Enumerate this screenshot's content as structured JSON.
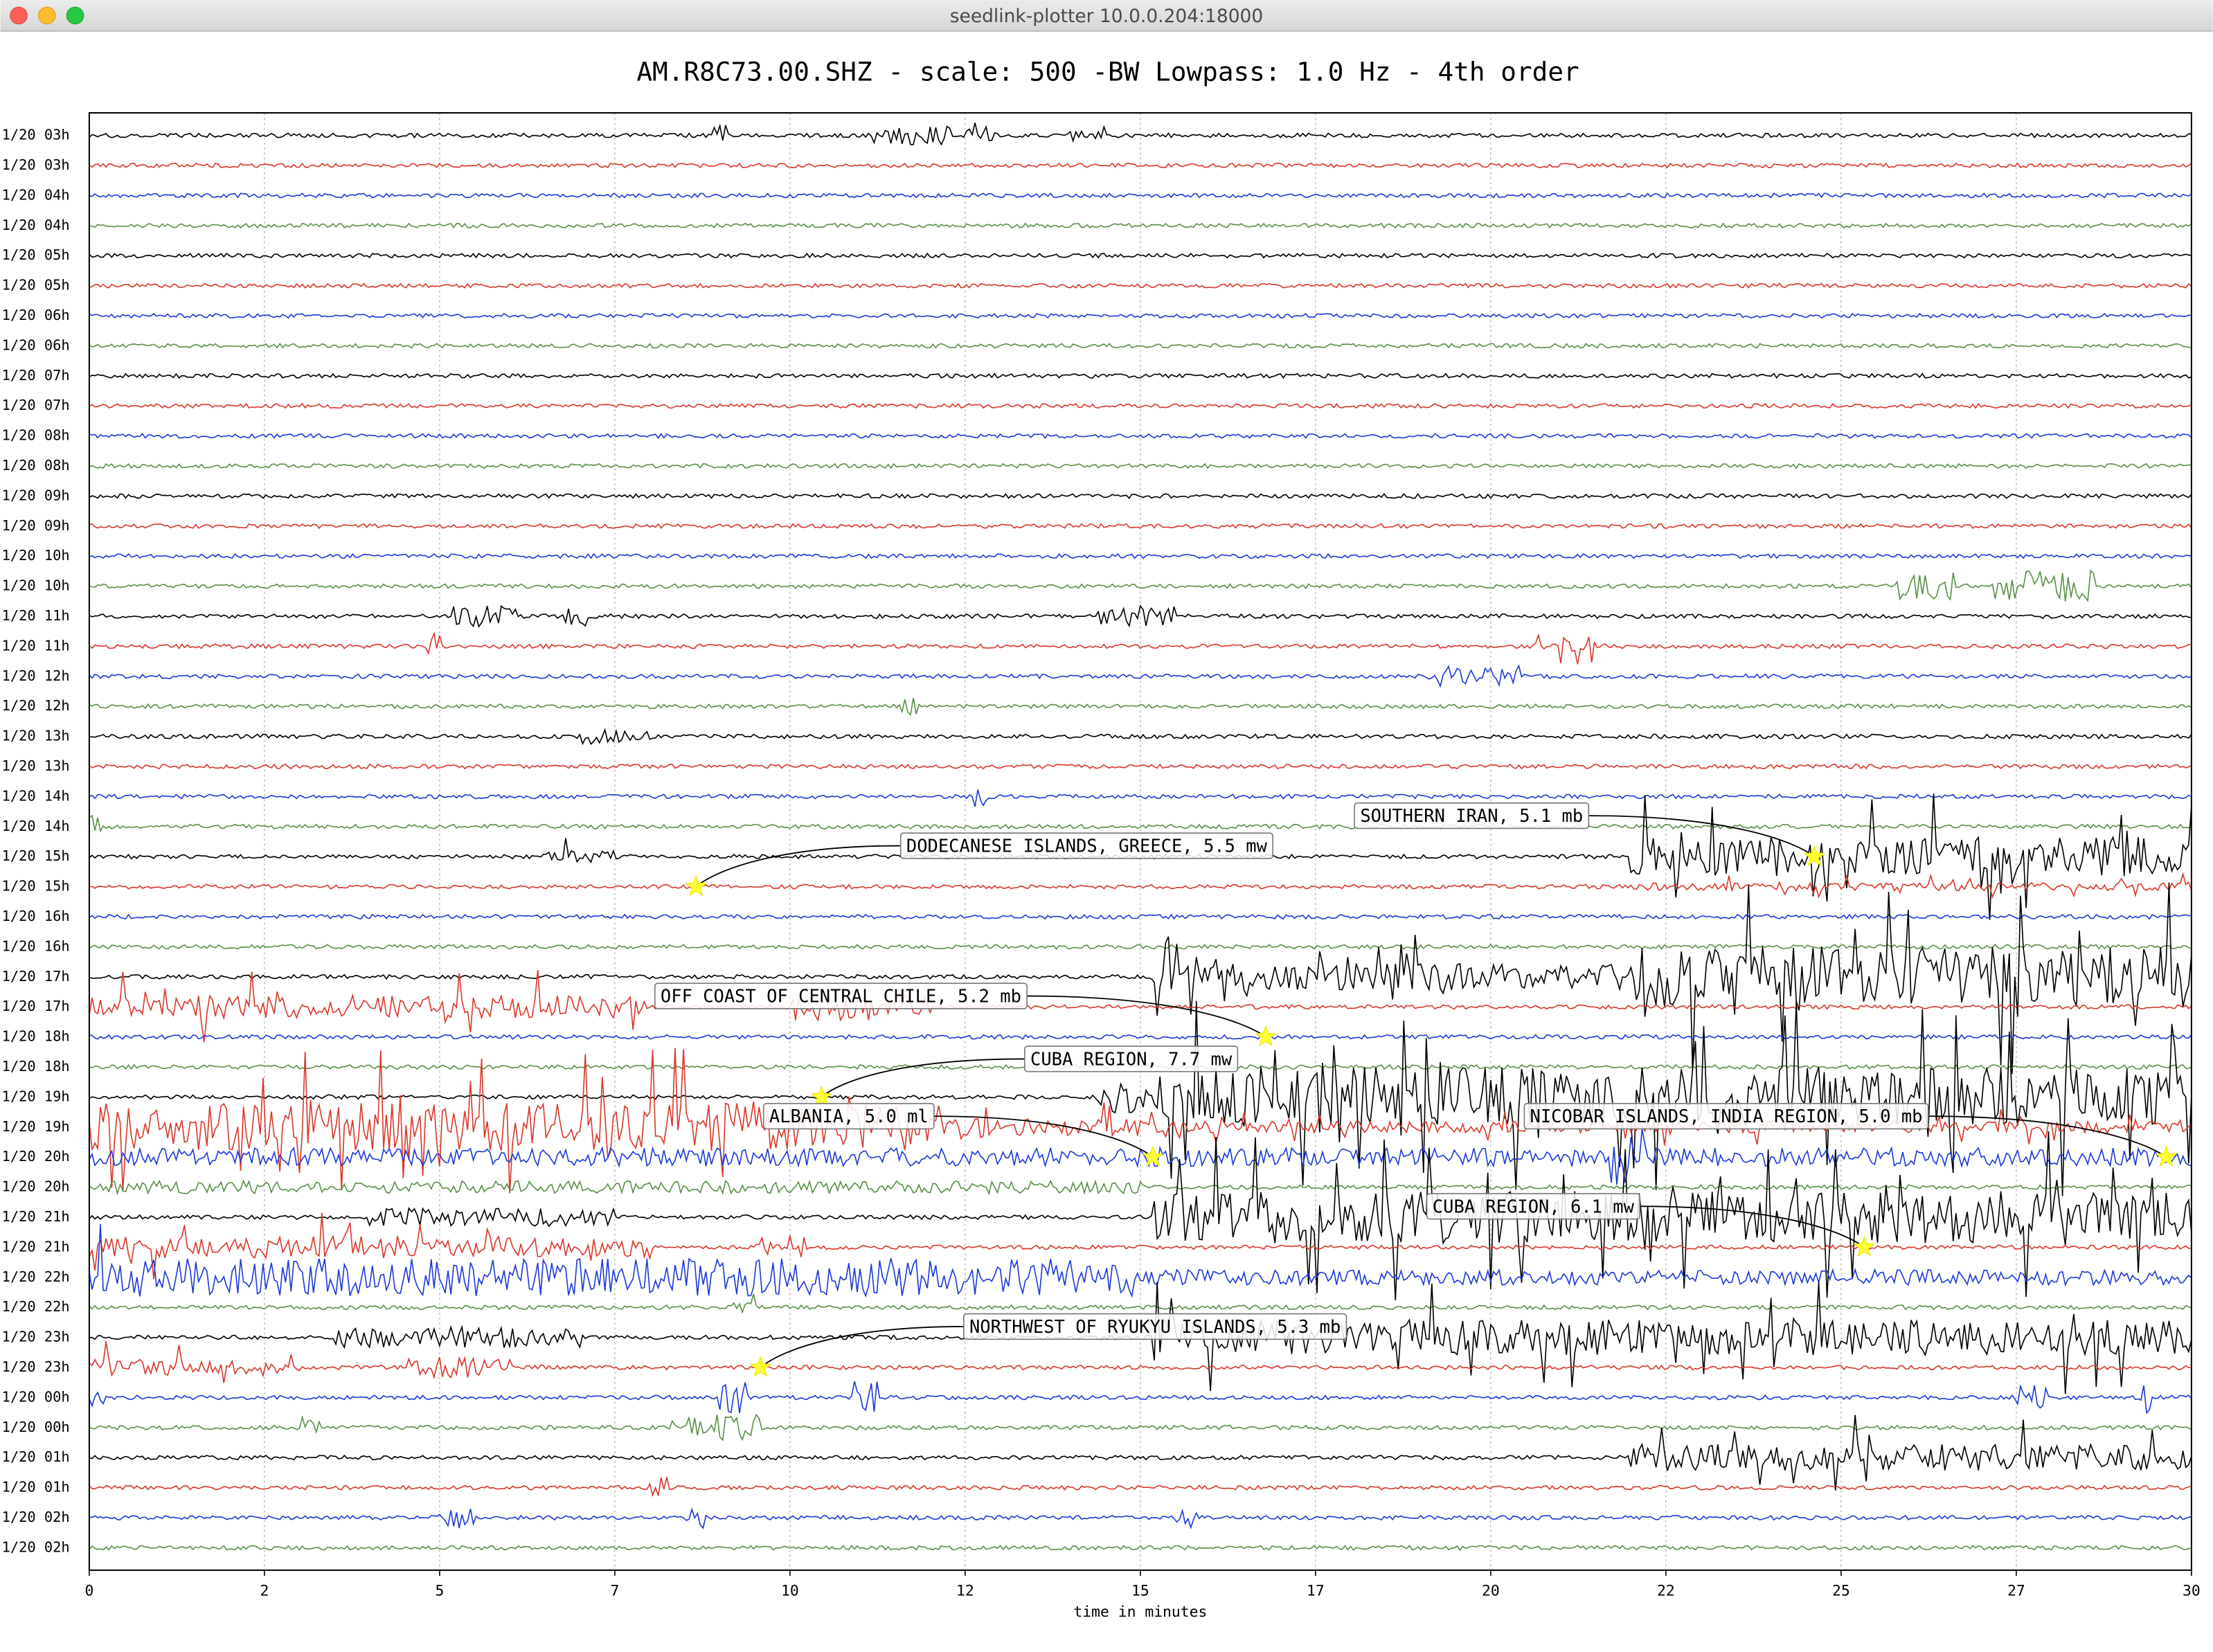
{
  "window": {
    "title": "seedlink-plotter 10.0.0.204:18000"
  },
  "chart_data": {
    "type": "seismogram",
    "title": "AM.R8C73.00.SHZ - scale: 500 -BW Lowpass: 1.0 Hz - 4th order",
    "xlabel": "time in minutes",
    "xlim": [
      0,
      30
    ],
    "xticks": [
      0,
      {
        "value": 2.5,
        "label": "2"
      },
      5,
      {
        "value": 7.5,
        "label": "7"
      },
      10,
      {
        "value": 12.5,
        "label": "12"
      },
      15,
      {
        "value": 17.5,
        "label": "17"
      },
      20,
      {
        "value": 22.5,
        "label": "22"
      },
      25,
      {
        "value": 27.5,
        "label": "27"
      },
      30
    ],
    "grid": true,
    "series": [
      {
        "name": "1/20 03h",
        "color": "#000000"
      },
      {
        "name": "1/20 03h",
        "color": "#d9382b"
      },
      {
        "name": "1/20 04h",
        "color": "#1e3ad8"
      },
      {
        "name": "1/20 04h",
        "color": "#5a9048"
      },
      {
        "name": "1/20 05h",
        "color": "#000000"
      },
      {
        "name": "1/20 05h",
        "color": "#d9382b"
      },
      {
        "name": "1/20 06h",
        "color": "#1e3ad8"
      },
      {
        "name": "1/20 06h",
        "color": "#5a9048"
      },
      {
        "name": "1/20 07h",
        "color": "#000000"
      },
      {
        "name": "1/20 07h",
        "color": "#d9382b"
      },
      {
        "name": "1/20 08h",
        "color": "#1e3ad8"
      },
      {
        "name": "1/20 08h",
        "color": "#5a9048"
      },
      {
        "name": "1/20 09h",
        "color": "#000000"
      },
      {
        "name": "1/20 09h",
        "color": "#d9382b"
      },
      {
        "name": "1/20 10h",
        "color": "#1e3ad8"
      },
      {
        "name": "1/20 10h",
        "color": "#5a9048"
      },
      {
        "name": "1/20 11h",
        "color": "#000000"
      },
      {
        "name": "1/20 11h",
        "color": "#d9382b"
      },
      {
        "name": "1/20 12h",
        "color": "#1e3ad8"
      },
      {
        "name": "1/20 12h",
        "color": "#5a9048"
      },
      {
        "name": "1/20 13h",
        "color": "#000000"
      },
      {
        "name": "1/20 13h",
        "color": "#d9382b"
      },
      {
        "name": "1/20 14h",
        "color": "#1e3ad8"
      },
      {
        "name": "1/20 14h",
        "color": "#5a9048"
      },
      {
        "name": "1/20 15h",
        "color": "#000000"
      },
      {
        "name": "1/20 15h",
        "color": "#d9382b"
      },
      {
        "name": "1/20 16h",
        "color": "#1e3ad8"
      },
      {
        "name": "1/20 16h",
        "color": "#5a9048"
      },
      {
        "name": "1/20 17h",
        "color": "#000000"
      },
      {
        "name": "1/20 17h",
        "color": "#d9382b"
      },
      {
        "name": "1/20 18h",
        "color": "#1e3ad8"
      },
      {
        "name": "1/20 18h",
        "color": "#5a9048"
      },
      {
        "name": "1/20 19h",
        "color": "#000000"
      },
      {
        "name": "1/20 19h",
        "color": "#d9382b"
      },
      {
        "name": "1/20 20h",
        "color": "#1e3ad8"
      },
      {
        "name": "1/20 20h",
        "color": "#5a9048"
      },
      {
        "name": "1/20 21h",
        "color": "#000000"
      },
      {
        "name": "1/20 21h",
        "color": "#d9382b"
      },
      {
        "name": "1/20 22h",
        "color": "#1e3ad8"
      },
      {
        "name": "1/20 22h",
        "color": "#5a9048"
      },
      {
        "name": "1/20 23h",
        "color": "#000000"
      },
      {
        "name": "1/20 23h",
        "color": "#d9382b"
      },
      {
        "name": "1/20 00h",
        "color": "#1e3ad8"
      },
      {
        "name": "1/20 00h",
        "color": "#5a9048"
      },
      {
        "name": "1/20 01h",
        "color": "#000000"
      },
      {
        "name": "1/20 01h",
        "color": "#d9382b"
      },
      {
        "name": "1/20 02h",
        "color": "#1e3ad8"
      },
      {
        "name": "1/20 02h",
        "color": "#5a9048"
      }
    ],
    "events": [
      {
        "label": "DODECANESE ISLANDS, GREECE, 5.5 mw",
        "x": 8.66,
        "trace": 25
      },
      {
        "label": "SOUTHERN IRAN, 5.1 mb",
        "x": 24.62,
        "trace": 24
      },
      {
        "label": "OFF COAST OF CENTRAL CHILE, 5.2 mb",
        "x": 16.79,
        "trace": 30
      },
      {
        "label": "CUBA REGION, 7.7 mw",
        "x": 10.45,
        "trace": 32
      },
      {
        "label": "ALBANIA, 5.0 ml",
        "x": 15.18,
        "trace": 34
      },
      {
        "label": "NICOBAR ISLANDS, INDIA REGION, 5.0 mb",
        "x": 29.64,
        "trace": 34
      },
      {
        "label": "CUBA REGION, 6.1 mw",
        "x": 25.33,
        "trace": 37
      },
      {
        "label": "NORTHWEST OF RYUKYU ISLANDS, 5.3 mb",
        "x": 9.58,
        "trace": 41
      }
    ]
  }
}
